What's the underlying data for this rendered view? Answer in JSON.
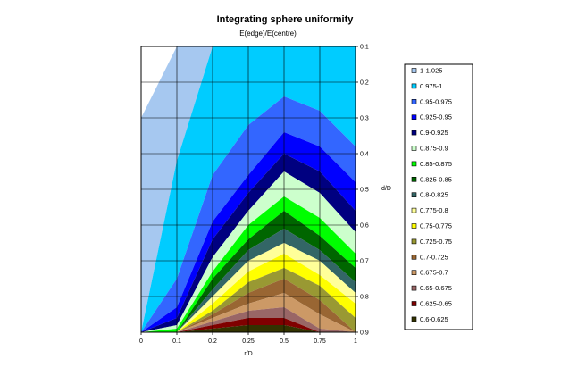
{
  "chart_data": {
    "type": "area",
    "title": "Integrating sphere uniformity",
    "subtitle": "E(edge)/E(centre)",
    "xlabel": "r/D",
    "ylabel": "d/D",
    "x_ticks": [
      "0",
      "0.1",
      "0.2",
      "0.25",
      "0.5",
      "0.75",
      "1"
    ],
    "y_ticks": [
      "0.1",
      "0.2",
      "0.3",
      "0.4",
      "0.5",
      "0.6",
      "0.7",
      "0.8",
      "0.9"
    ],
    "y_values": [
      0.1,
      0.2,
      0.3,
      0.4,
      0.5,
      0.6,
      0.7,
      0.8,
      0.9
    ],
    "legend_position": "right",
    "grid": true,
    "legend": [
      {
        "label": "1-1.025",
        "color": "#a6c8f0"
      },
      {
        "label": "0.975-1",
        "color": "#00ccff"
      },
      {
        "label": "0.95-0.975",
        "color": "#3366ff"
      },
      {
        "label": "0.925-0.95",
        "color": "#0000ff"
      },
      {
        "label": "0.9-0.925",
        "color": "#000080"
      },
      {
        "label": "0.875-0.9",
        "color": "#ccffcc"
      },
      {
        "label": "0.85-0.875",
        "color": "#00ff00"
      },
      {
        "label": "0.825-0.85",
        "color": "#006600"
      },
      {
        "label": "0.8-0.825",
        "color": "#336666"
      },
      {
        "label": "0.775-0.8",
        "color": "#ffff99"
      },
      {
        "label": "0.75-0.775",
        "color": "#ffff00"
      },
      {
        "label": "0.725-0.75",
        "color": "#999933"
      },
      {
        "label": "0.7-0.725",
        "color": "#996633"
      },
      {
        "label": "0.675-0.7",
        "color": "#cc9966"
      },
      {
        "label": "0.65-0.675",
        "color": "#996666"
      },
      {
        "label": "0.625-0.65",
        "color": "#800000"
      },
      {
        "label": "0.6-0.625",
        "color": "#333300"
      }
    ],
    "band_boundaries_d": [
      [
        0.3,
        0.1,
        0.1,
        0.1,
        0.1,
        0.1,
        0.1
      ],
      [
        0.9,
        0.42,
        0.1,
        0.1,
        0.1,
        0.1,
        0.1
      ],
      [
        0.9,
        0.75,
        0.46,
        0.32,
        0.24,
        0.28,
        0.38
      ],
      [
        0.9,
        0.83,
        0.59,
        0.46,
        0.34,
        0.38,
        0.48
      ],
      [
        0.9,
        0.86,
        0.64,
        0.51,
        0.4,
        0.45,
        0.56
      ],
      [
        0.9,
        0.88,
        0.69,
        0.56,
        0.45,
        0.51,
        0.62
      ],
      [
        0.9,
        0.89,
        0.73,
        0.6,
        0.52,
        0.58,
        0.68
      ],
      [
        0.9,
        0.9,
        0.75,
        0.64,
        0.56,
        0.63,
        0.72
      ],
      [
        0.9,
        0.9,
        0.78,
        0.67,
        0.61,
        0.67,
        0.76
      ],
      [
        0.9,
        0.9,
        0.8,
        0.7,
        0.65,
        0.7,
        0.79
      ],
      [
        0.9,
        0.9,
        0.82,
        0.73,
        0.68,
        0.74,
        0.82
      ],
      [
        0.9,
        0.9,
        0.84,
        0.76,
        0.72,
        0.77,
        0.86
      ],
      [
        0.9,
        0.9,
        0.85,
        0.79,
        0.75,
        0.81,
        0.9
      ],
      [
        0.9,
        0.9,
        0.86,
        0.82,
        0.79,
        0.85,
        0.9
      ],
      [
        0.9,
        0.9,
        0.87,
        0.84,
        0.83,
        0.89,
        0.9
      ],
      [
        0.9,
        0.9,
        0.88,
        0.86,
        0.86,
        0.9,
        0.9
      ],
      [
        0.9,
        0.9,
        0.89,
        0.88,
        0.88,
        0.9,
        0.9
      ]
    ]
  }
}
